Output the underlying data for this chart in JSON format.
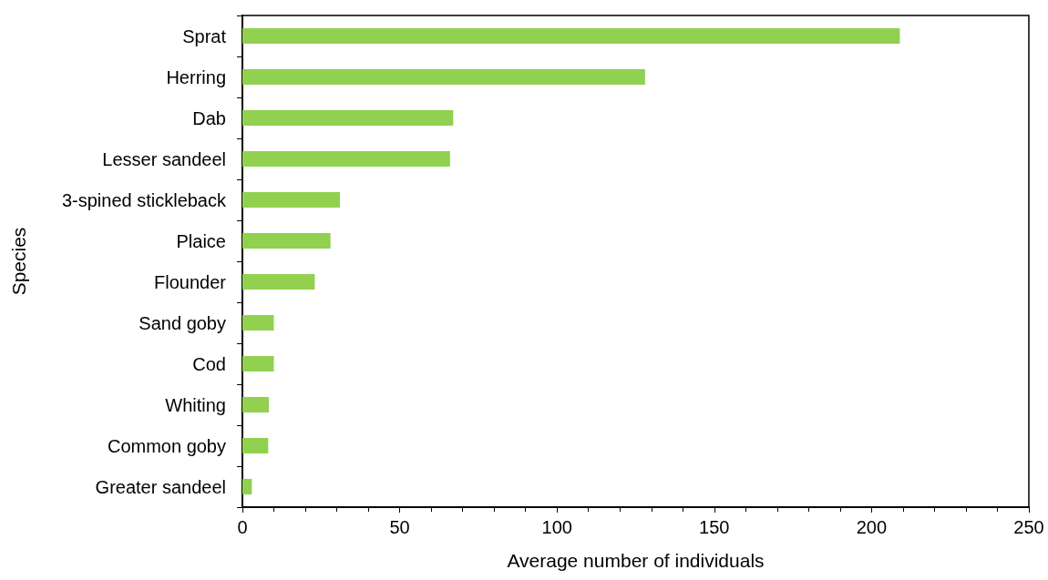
{
  "chart_data": {
    "type": "bar",
    "orientation": "horizontal",
    "xlabel": "Average number of individuals",
    "ylabel": "Species",
    "categories": [
      "Sprat",
      "Herring",
      "Dab",
      "Lesser sandeel",
      "3-spined stickleback",
      "Plaice",
      "Flounder",
      "Sand goby",
      "Cod",
      "Whiting",
      "Common goby",
      "Greater sandeel"
    ],
    "values": [
      209,
      128,
      67,
      66,
      31,
      28,
      23,
      10,
      10,
      8.4,
      8.2,
      3
    ],
    "color": "#92d050",
    "xlim": [
      0,
      250
    ],
    "xticks": [
      0,
      50,
      100,
      150,
      200,
      250
    ],
    "grid": false
  }
}
